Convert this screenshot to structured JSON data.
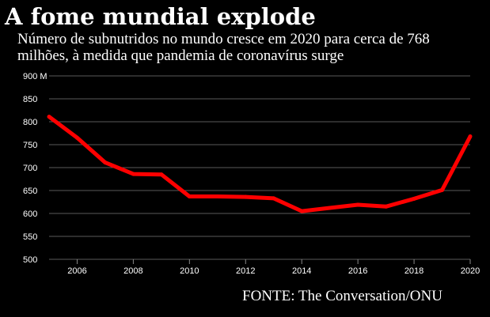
{
  "header": {
    "title": "A fome mundial explode",
    "subtitle": "Número de subnutridos no mundo cresce em 2020 para cerca de 768 milhões, à medida que pandemia de coronavírus surge"
  },
  "footer": {
    "source": "FONTE: The Conversation/ONU"
  },
  "chart_data": {
    "type": "line",
    "title": "A fome mundial explode",
    "subtitle": "Número de subnutridos no mundo cresce em 2020 para cerca de 768 milhões, à medida que pandemia de coronavírus surge",
    "source": "FONTE: The Conversation/ONU",
    "xlabel": "",
    "ylabel": "",
    "x_ticks": [
      2006,
      2008,
      2010,
      2012,
      2014,
      2016,
      2018,
      2020
    ],
    "y_ticks": [
      500,
      550,
      600,
      650,
      700,
      750,
      800,
      850,
      900
    ],
    "y_tick_labels": [
      "500",
      "550",
      "600",
      "650",
      "700",
      "750",
      "800",
      "850",
      "900 M"
    ],
    "xlim": [
      2005,
      2020
    ],
    "ylim": [
      500,
      900
    ],
    "grid": true,
    "series": [
      {
        "color": "#ff0000",
        "x": [
          2005,
          2006,
          2007,
          2008,
          2009,
          2010,
          2011,
          2012,
          2013,
          2014,
          2015,
          2016,
          2017,
          2018,
          2019,
          2020
        ],
        "values": [
          811,
          765,
          711,
          686,
          685,
          637,
          637,
          636,
          633,
          605,
          612,
          619,
          615,
          632,
          651,
          768
        ]
      }
    ]
  }
}
